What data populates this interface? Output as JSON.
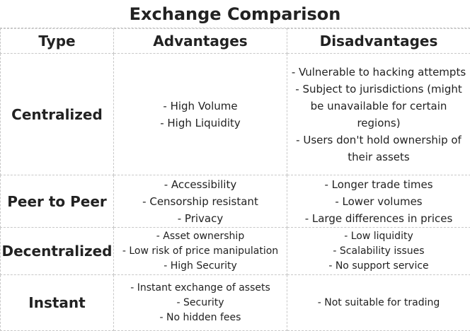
{
  "title": "Exchange Comparison",
  "table": {
    "header": [
      "Type",
      "Advantages",
      "Disadvantages"
    ],
    "rows": [
      {
        "type": "Centralized",
        "advantages": [
          "- High Volume",
          "- High Liquidity"
        ],
        "disadvantages": [
          "- Vulnerable to hacking attempts",
          "- Subject to jurisdictions (might be unavailable for certain regions)",
          "- Users don't hold ownership of their assets"
        ]
      },
      {
        "type": "Peer to Peer",
        "advantages": [
          "- Accessibility",
          "- Censorship resistant",
          "- Privacy"
        ],
        "disadvantages": [
          "- Longer trade times",
          "- Lower volumes",
          "- Large differences in prices"
        ]
      },
      {
        "type": "Decentralized",
        "advantages": [
          "- Asset ownership",
          "- Low risk of price manipulation",
          "- High Security"
        ],
        "disadvantages": [
          "- Low liquidity",
          "- Scalability issues",
          "- No support service"
        ]
      },
      {
        "type": "Instant",
        "advantages": [
          "- Instant exchange of assets",
          "- Security",
          "- No hidden fees"
        ],
        "disadvantages": [
          "- Not suitable for trading"
        ]
      }
    ]
  }
}
